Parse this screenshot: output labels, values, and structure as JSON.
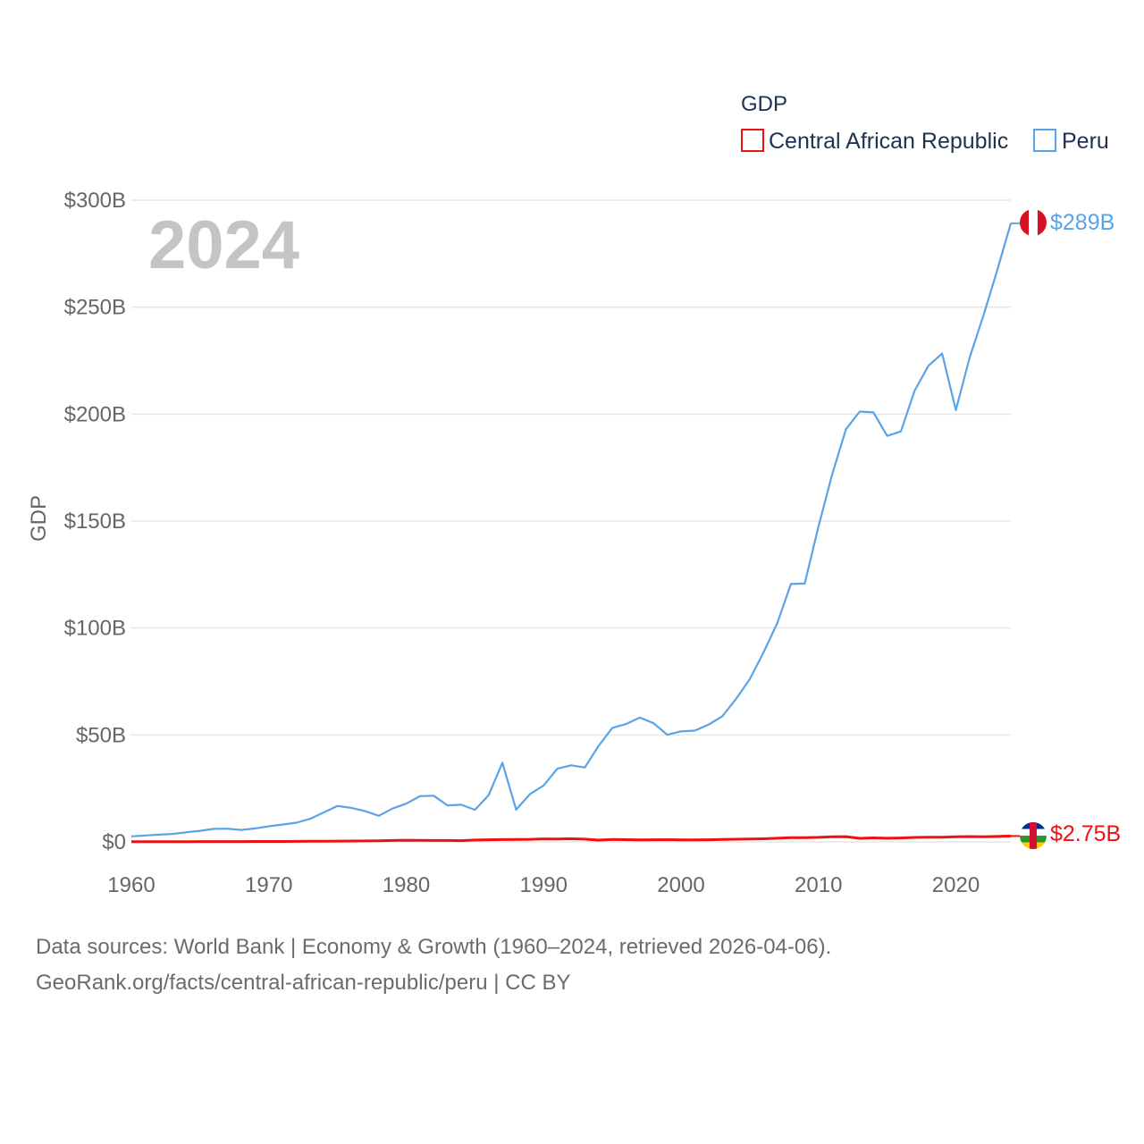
{
  "chart_data": {
    "type": "line",
    "legend_title": "GDP",
    "legend_position": "top-right",
    "ylabel": "GDP",
    "year_overlay": "2024",
    "xlim": [
      1960,
      2024
    ],
    "ylim": [
      0,
      300
    ],
    "y_unit": "billions USD",
    "x_ticks": [
      1960,
      1970,
      1980,
      1990,
      2000,
      2010,
      2020
    ],
    "x_tick_labels": [
      "1960",
      "1970",
      "1980",
      "1990",
      "2000",
      "2010",
      "2020"
    ],
    "y_ticks": [
      0,
      50,
      100,
      150,
      200,
      250,
      300
    ],
    "y_tick_labels": [
      "$0",
      "$50B",
      "$100B",
      "$150B",
      "$200B",
      "$250B",
      "$300B"
    ],
    "grid": true,
    "x": [
      1960,
      1961,
      1962,
      1963,
      1964,
      1965,
      1966,
      1967,
      1968,
      1969,
      1970,
      1971,
      1972,
      1973,
      1974,
      1975,
      1976,
      1977,
      1978,
      1979,
      1980,
      1981,
      1982,
      1983,
      1984,
      1985,
      1986,
      1987,
      1988,
      1989,
      1990,
      1991,
      1992,
      1993,
      1994,
      1995,
      1996,
      1997,
      1998,
      1999,
      2000,
      2001,
      2002,
      2003,
      2004,
      2005,
      2006,
      2007,
      2008,
      2009,
      2010,
      2011,
      2012,
      2013,
      2014,
      2015,
      2016,
      2017,
      2018,
      2019,
      2020,
      2021,
      2022,
      2023,
      2024
    ],
    "series": [
      {
        "name": "Central African Republic",
        "color": "#ee1111",
        "end_label": "$2.75B",
        "values": [
          0.11,
          0.12,
          0.13,
          0.14,
          0.14,
          0.15,
          0.16,
          0.17,
          0.18,
          0.19,
          0.19,
          0.21,
          0.23,
          0.28,
          0.29,
          0.36,
          0.42,
          0.47,
          0.55,
          0.65,
          0.8,
          0.69,
          0.66,
          0.65,
          0.59,
          0.87,
          0.99,
          1.1,
          1.18,
          1.2,
          1.44,
          1.38,
          1.45,
          1.28,
          0.85,
          1.12,
          1.03,
          0.94,
          1.0,
          1.05,
          0.91,
          0.93,
          0.99,
          1.14,
          1.27,
          1.35,
          1.47,
          1.7,
          1.98,
          2.0,
          2.14,
          2.44,
          2.47,
          1.69,
          1.89,
          1.7,
          1.83,
          2.07,
          2.22,
          2.22,
          2.38,
          2.52,
          2.38,
          2.56,
          2.75
        ]
      },
      {
        "name": "Peru",
        "color": "#5aa3e6",
        "end_label": "$289B",
        "values": [
          2.6,
          3.0,
          3.4,
          3.7,
          4.5,
          5.2,
          6.1,
          6.2,
          5.6,
          6.3,
          7.3,
          8.1,
          9.0,
          10.8,
          13.8,
          16.8,
          15.9,
          14.4,
          12.2,
          15.6,
          17.9,
          21.4,
          21.6,
          17.1,
          17.4,
          15.0,
          21.9,
          37.0,
          15.1,
          22.3,
          26.4,
          34.2,
          35.8,
          34.8,
          44.9,
          53.3,
          55.1,
          58.1,
          55.5,
          50.1,
          51.7,
          52.0,
          54.8,
          58.7,
          66.8,
          76.1,
          88.6,
          102.2,
          120.6,
          120.8,
          147.5,
          171.8,
          192.9,
          201.2,
          200.8,
          189.8,
          191.9,
          211.0,
          222.6,
          228.3,
          201.9,
          226.4,
          246.0,
          267.0,
          289.2
        ]
      }
    ]
  },
  "footer": {
    "line1": "Data sources: World Bank | Economy & Growth (1960–2024, retrieved 2026-04-06).",
    "line2": "GeoRank.org/facts/central-african-republic/peru | CC BY"
  }
}
